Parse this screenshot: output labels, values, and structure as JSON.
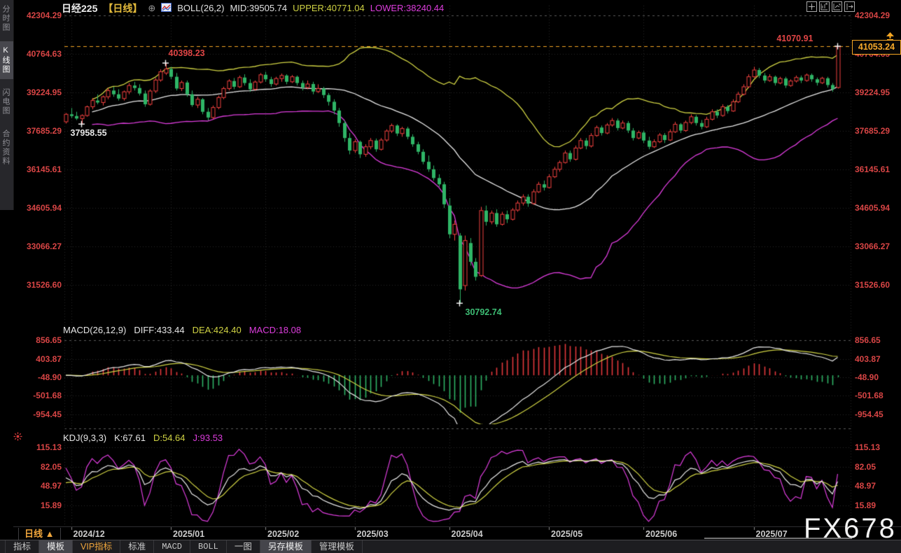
{
  "sidebar": {
    "items": [
      {
        "label": "分时图",
        "selected": false
      },
      {
        "label": "K线图",
        "selected": true
      },
      {
        "label": "闪电图",
        "selected": false
      },
      {
        "label": "合约资料",
        "selected": false
      }
    ]
  },
  "title_bar": {
    "symbol": "日经225",
    "period_tag": "【日线】",
    "link_glyph": "⊕",
    "indicator": "BOLL(26,2)",
    "mid": "MID:39505.74",
    "upper": "UPPER:40771.04",
    "lower": "LOWER:38240.44"
  },
  "topright_icons": [
    {
      "name": "pan-crosshair-icon"
    },
    {
      "name": "zoom-range-icon"
    },
    {
      "name": "measure-axis-icon"
    },
    {
      "name": "export-chart-icon"
    }
  ],
  "main_panel": {
    "price_box": {
      "value": "41053.24"
    }
  },
  "macd_panel": {
    "header": {
      "name": "MACD(26,12,9)",
      "diff": "DIFF:433.44",
      "dea": "DEA:424.40",
      "macd": "MACD:18.08"
    }
  },
  "kdj_panel": {
    "header": {
      "name": "KDJ(9,3,3)",
      "k": "K:67.61",
      "d": "D:54.64",
      "j": "J:93.53"
    }
  },
  "xaxis": {
    "period_button": "日线",
    "period_arrow": "▲"
  },
  "toolbar": {
    "items": [
      {
        "label": "指标",
        "name": "indicators",
        "selected": false,
        "vip": false
      },
      {
        "label": "模板",
        "name": "templates",
        "selected": true,
        "vip": false
      },
      {
        "label": "VIP指标",
        "name": "vip-indicators",
        "selected": false,
        "vip": true
      },
      {
        "label": "标准",
        "name": "standard",
        "selected": false,
        "vip": false
      },
      {
        "label": "MACD",
        "name": "macd",
        "selected": false,
        "vip": false
      },
      {
        "label": "BOLL",
        "name": "boll",
        "selected": false,
        "vip": false
      },
      {
        "label": "一图",
        "name": "one-chart",
        "selected": false,
        "vip": false
      },
      {
        "label": "另存模板",
        "name": "save-template",
        "selected": true,
        "vip": false
      },
      {
        "label": "管理模板",
        "name": "manage-template",
        "selected": false,
        "vip": false
      }
    ]
  },
  "watermark": {
    "text": "FX678"
  },
  "colors": {
    "up": "#f0413f",
    "down": "#2fb566",
    "boll_upper": "#cfd243",
    "boll_mid": "#e8e8e8",
    "boll_lower": "#dd3ddd",
    "axis_text": "#d84545",
    "grid": "#262626",
    "grid_light": "#5a5a5a",
    "high_line": "#f5a623",
    "diff": "#e8e8e8",
    "dea": "#cfd243",
    "k": "#e8e8e8",
    "d": "#cfd243",
    "j": "#dd3ddd",
    "hist_pos": "#e5383c",
    "hist_neg": "#2fb566"
  },
  "chart_data": {
    "type": "candlestick",
    "title": "日经225 日线",
    "indicators": {
      "boll": {
        "period": 26,
        "mult": 2,
        "mid": 39505.74,
        "upper": 40771.04,
        "lower": 38240.44
      },
      "macd": {
        "fast": 12,
        "slow": 26,
        "signal": 9,
        "diff": 433.44,
        "dea": 424.4,
        "macd": 18.08
      },
      "kdj": {
        "n": 9,
        "m1": 3,
        "m2": 3,
        "k": 67.61,
        "d": 54.64,
        "j": 93.53
      }
    },
    "main_ticks": [
      42304.29,
      40764.63,
      39224.95,
      37685.29,
      36145.61,
      34605.94,
      33066.27,
      31526.6
    ],
    "macd_ticks": [
      856.65,
      403.87,
      -48.9,
      -501.68,
      -954.45
    ],
    "kdj_ticks": [
      115.13,
      82.05,
      48.97,
      15.89
    ],
    "x_dates": [
      {
        "label": "2024/12",
        "index": 1
      },
      {
        "label": "2025/01",
        "index": 20
      },
      {
        "label": "2025/02",
        "index": 38
      },
      {
        "label": "2025/03",
        "index": 55
      },
      {
        "label": "2025/04",
        "index": 73
      },
      {
        "label": "2025/05",
        "index": 92
      },
      {
        "label": "2025/06",
        "index": 110
      },
      {
        "label": "2025/07",
        "index": 131
      }
    ],
    "annotations": [
      {
        "label": "40398.23",
        "index": 19,
        "price": 40398.23,
        "placement": "above",
        "color": "#e04545"
      },
      {
        "label": "37958.55",
        "index": 3,
        "price": 37958.55,
        "placement": "below-left",
        "color": "#e8e8e8"
      },
      {
        "label": "30792.74",
        "index": 75,
        "price": 30792.74,
        "placement": "below",
        "color": "#3dbd74"
      },
      {
        "label": "41070.91",
        "index": 147,
        "price": 41070.91,
        "placement": "hline",
        "color": "#e04545"
      }
    ],
    "last_price": 41053.24,
    "candles": [
      [
        38050,
        38400,
        37980,
        38350
      ],
      [
        38350,
        38600,
        38200,
        38280
      ],
      [
        38280,
        38450,
        38120,
        38180
      ],
      [
        38180,
        38350,
        37958.55,
        38300
      ],
      [
        38300,
        38700,
        38250,
        38650
      ],
      [
        38650,
        39000,
        38550,
        38900
      ],
      [
        38900,
        39150,
        38750,
        38820
      ],
      [
        38820,
        39100,
        38700,
        39050
      ],
      [
        39050,
        39400,
        38950,
        39300
      ],
      [
        39300,
        39450,
        39050,
        39150
      ],
      [
        39150,
        39350,
        38900,
        38980
      ],
      [
        38980,
        39300,
        38900,
        39250
      ],
      [
        39250,
        39600,
        39150,
        39500
      ],
      [
        39500,
        39650,
        39300,
        39400
      ],
      [
        39400,
        39550,
        39100,
        39180
      ],
      [
        39180,
        39300,
        38650,
        38750
      ],
      [
        38750,
        39350,
        38700,
        39280
      ],
      [
        39280,
        39800,
        39200,
        39720
      ],
      [
        39720,
        40150,
        39650,
        40050
      ],
      [
        40000,
        40398.23,
        39920,
        40160
      ],
      [
        40160,
        40250,
        39750,
        39850
      ],
      [
        39850,
        40000,
        39300,
        39380
      ],
      [
        39380,
        39700,
        39280,
        39620
      ],
      [
        39620,
        39700,
        39050,
        39150
      ],
      [
        39150,
        39300,
        38650,
        38720
      ],
      [
        38720,
        39050,
        38600,
        38950
      ],
      [
        38950,
        39000,
        38350,
        38450
      ],
      [
        38450,
        38600,
        38100,
        38220
      ],
      [
        38220,
        38700,
        38150,
        38620
      ],
      [
        38620,
        39100,
        38550,
        39020
      ],
      [
        39020,
        39450,
        38950,
        39380
      ],
      [
        39380,
        39750,
        39300,
        39680
      ],
      [
        39680,
        39800,
        39350,
        39450
      ],
      [
        39450,
        39900,
        39400,
        39820
      ],
      [
        39820,
        39950,
        39500,
        39600
      ],
      [
        39600,
        39750,
        39250,
        39350
      ],
      [
        39350,
        39700,
        39300,
        39640
      ],
      [
        39640,
        40000,
        39580,
        39930
      ],
      [
        39930,
        40050,
        39650,
        39750
      ],
      [
        39750,
        39850,
        39450,
        39560
      ],
      [
        39560,
        39850,
        39500,
        39780
      ],
      [
        39780,
        39980,
        39650,
        39900
      ],
      [
        39900,
        39950,
        39550,
        39650
      ],
      [
        39650,
        39920,
        39600,
        39850
      ],
      [
        39850,
        39900,
        39500,
        39600
      ],
      [
        39600,
        39700,
        39300,
        39420
      ],
      [
        39420,
        39700,
        39350,
        39560
      ],
      [
        39560,
        39650,
        39150,
        39260
      ],
      [
        39260,
        39550,
        39200,
        39380
      ],
      [
        39380,
        39450,
        39000,
        39120
      ],
      [
        39120,
        39200,
        38700,
        38850
      ],
      [
        38850,
        38950,
        38350,
        38500
      ],
      [
        38500,
        38600,
        37850,
        38000
      ],
      [
        38000,
        38100,
        37250,
        37400
      ],
      [
        37400,
        37600,
        36750,
        36900
      ],
      [
        36900,
        37350,
        36800,
        37250
      ],
      [
        37250,
        37300,
        36600,
        36750
      ],
      [
        36750,
        37150,
        36650,
        37050
      ],
      [
        37050,
        37400,
        36950,
        37300
      ],
      [
        37300,
        37380,
        36850,
        36950
      ],
      [
        36950,
        37400,
        36900,
        37320
      ],
      [
        37320,
        37750,
        37250,
        37680
      ],
      [
        37680,
        37980,
        37600,
        37900
      ],
      [
        37900,
        37950,
        37480,
        37580
      ],
      [
        37580,
        37850,
        37450,
        37780
      ],
      [
        37780,
        37850,
        37350,
        37450
      ],
      [
        37450,
        37550,
        37050,
        37150
      ],
      [
        37150,
        37250,
        36750,
        36850
      ],
      [
        36850,
        36950,
        36350,
        36450
      ],
      [
        36450,
        36700,
        36050,
        36150
      ],
      [
        36150,
        36300,
        35700,
        35800
      ],
      [
        35800,
        35950,
        35450,
        35550
      ],
      [
        35550,
        35650,
        34600,
        34750
      ],
      [
        34700,
        35000,
        33400,
        33550
      ],
      [
        33550,
        34100,
        33300,
        33950
      ],
      [
        33500,
        33600,
        30792.74,
        31350
      ],
      [
        31500,
        33500,
        31300,
        33300
      ],
      [
        33200,
        33400,
        32300,
        32450
      ],
      [
        32450,
        32600,
        31700,
        31850
      ],
      [
        31900,
        34650,
        31850,
        34500
      ],
      [
        34500,
        34700,
        33900,
        34050
      ],
      [
        34050,
        34500,
        33950,
        34400
      ],
      [
        34400,
        34550,
        33850,
        33950
      ],
      [
        33950,
        34450,
        33900,
        34350
      ],
      [
        34350,
        34500,
        34000,
        34150
      ],
      [
        34150,
        34600,
        34100,
        34520
      ],
      [
        34520,
        34900,
        34450,
        34800
      ],
      [
        34800,
        35150,
        34700,
        35050
      ],
      [
        35050,
        35150,
        34650,
        34780
      ],
      [
        34780,
        35350,
        34730,
        35250
      ],
      [
        35250,
        35650,
        35200,
        35550
      ],
      [
        35550,
        35700,
        35300,
        35420
      ],
      [
        35420,
        35950,
        35380,
        35850
      ],
      [
        35850,
        36250,
        35800,
        36150
      ],
      [
        36150,
        36500,
        36050,
        36420
      ],
      [
        36420,
        36900,
        36380,
        36800
      ],
      [
        36800,
        36900,
        36450,
        36550
      ],
      [
        36550,
        37100,
        36500,
        37000
      ],
      [
        37000,
        37400,
        36950,
        37300
      ],
      [
        37300,
        37400,
        36950,
        37080
      ],
      [
        37080,
        37600,
        37020,
        37500
      ],
      [
        37500,
        37900,
        37450,
        37820
      ],
      [
        37820,
        37900,
        37500,
        37600
      ],
      [
        37600,
        38000,
        37550,
        37920
      ],
      [
        37920,
        38200,
        37850,
        38100
      ],
      [
        38100,
        38180,
        37700,
        37800
      ],
      [
        37800,
        38100,
        37750,
        38000
      ],
      [
        38000,
        38080,
        37600,
        37700
      ],
      [
        37700,
        37800,
        37300,
        37400
      ],
      [
        37400,
        37700,
        37350,
        37620
      ],
      [
        37620,
        37700,
        37200,
        37300
      ],
      [
        37300,
        37450,
        36950,
        37050
      ],
      [
        37050,
        37350,
        37000,
        37250
      ],
      [
        37250,
        37600,
        37200,
        37520
      ],
      [
        37520,
        37600,
        37200,
        37320
      ],
      [
        37320,
        37750,
        37280,
        37650
      ],
      [
        37650,
        38050,
        37600,
        37950
      ],
      [
        37950,
        38000,
        37600,
        37700
      ],
      [
        37700,
        38100,
        37650,
        38020
      ],
      [
        38020,
        38350,
        37950,
        38250
      ],
      [
        38250,
        38320,
        37900,
        38000
      ],
      [
        38000,
        38120,
        37750,
        37850
      ],
      [
        37850,
        38250,
        37800,
        38150
      ],
      [
        38150,
        38550,
        38100,
        38450
      ],
      [
        38450,
        38550,
        38200,
        38300
      ],
      [
        38300,
        38750,
        38250,
        38650
      ],
      [
        38650,
        38720,
        38380,
        38480
      ],
      [
        38480,
        38950,
        38450,
        38850
      ],
      [
        38850,
        39250,
        38800,
        39150
      ],
      [
        39150,
        39550,
        39100,
        39450
      ],
      [
        39450,
        39950,
        39400,
        39850
      ],
      [
        39850,
        40250,
        39800,
        40120
      ],
      [
        40120,
        40200,
        39800,
        39900
      ],
      [
        39900,
        40000,
        39600,
        39700
      ],
      [
        39700,
        39950,
        39650,
        39850
      ],
      [
        39850,
        39900,
        39500,
        39600
      ],
      [
        39600,
        39850,
        39550,
        39780
      ],
      [
        39780,
        39850,
        39400,
        39500
      ],
      [
        39500,
        39750,
        39450,
        39680
      ],
      [
        39680,
        39900,
        39620,
        39820
      ],
      [
        39820,
        39900,
        39600,
        39700
      ],
      [
        39700,
        39980,
        39650,
        39920
      ],
      [
        39920,
        39980,
        39650,
        39750
      ],
      [
        39750,
        39820,
        39500,
        39610
      ],
      [
        39610,
        39850,
        39560,
        39790
      ],
      [
        39790,
        39850,
        39420,
        39520
      ],
      [
        39520,
        39600,
        39250,
        39360
      ],
      [
        39420,
        41070.91,
        39380,
        41053.24
      ]
    ]
  }
}
